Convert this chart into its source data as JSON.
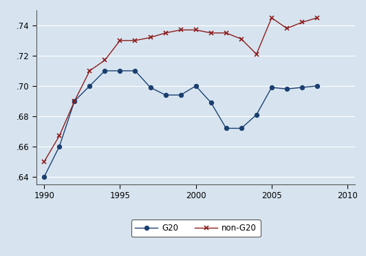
{
  "years": [
    1990,
    1991,
    1992,
    1993,
    1994,
    1995,
    1996,
    1997,
    1998,
    1999,
    2000,
    2001,
    2002,
    2003,
    2004,
    2005,
    2006,
    2007,
    2008
  ],
  "g20": [
    0.64,
    0.66,
    0.69,
    0.7,
    0.71,
    0.71,
    0.71,
    0.699,
    0.694,
    0.694,
    0.7,
    0.689,
    0.672,
    0.672,
    0.681,
    0.699,
    0.698,
    0.699,
    0.7
  ],
  "non_g20": [
    0.65,
    0.667,
    0.69,
    0.71,
    0.717,
    0.73,
    0.73,
    0.732,
    0.735,
    0.737,
    0.737,
    0.735,
    0.735,
    0.731,
    0.721,
    0.745,
    0.738,
    0.742,
    0.745
  ],
  "g20_color": "#1a3f6f",
  "non_g20_color": "#8b1a1a",
  "outer_bg": "#d7e4f0",
  "plot_bg": "#d7e4f0",
  "grid_color": "#b8c8da",
  "ylim": [
    0.635,
    0.75
  ],
  "xlim": [
    1989.5,
    2010.5
  ],
  "yticks": [
    0.64,
    0.66,
    0.68,
    0.7,
    0.72,
    0.74
  ],
  "xticks": [
    1990,
    1995,
    2000,
    2005,
    2010
  ],
  "legend_labels": [
    "G20",
    "non-G20"
  ],
  "figsize": [
    5.32,
    3.72
  ],
  "dpi": 100
}
